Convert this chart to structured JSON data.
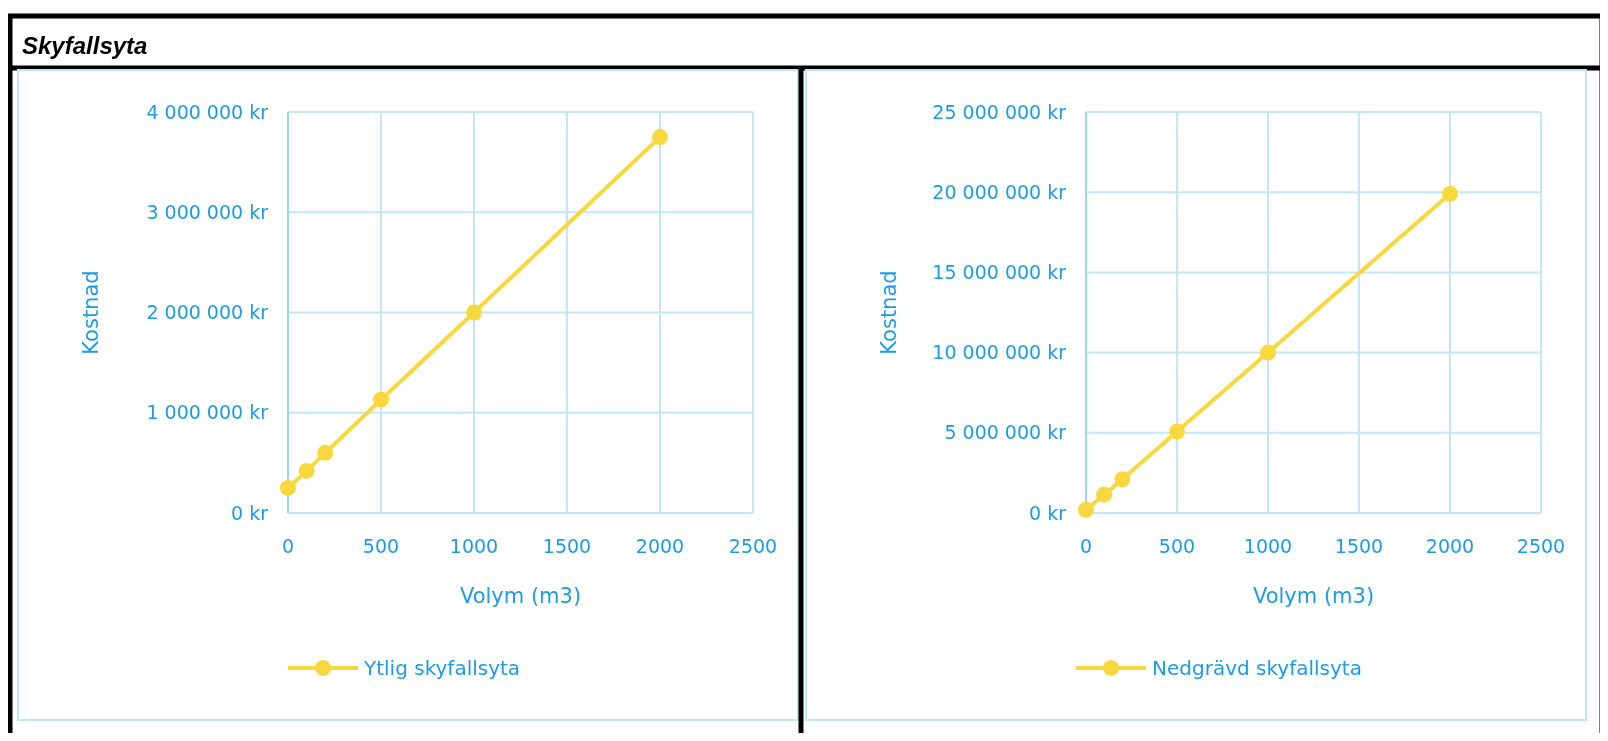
{
  "chart_data": [
    {
      "type": "line",
      "title": "Skyfallsyta",
      "xlabel": "Volym (m3)",
      "ylabel": "Kostnad",
      "x": [
        0,
        100,
        200,
        500,
        1000,
        2000
      ],
      "series": [
        {
          "name": "Ytlig skyfallsyta",
          "color": "#f9d83d",
          "values": [
            250000,
            420000,
            600000,
            1130000,
            2000000,
            3750000
          ]
        }
      ],
      "xlim": [
        0,
        2500
      ],
      "xticks": [
        0,
        500,
        1000,
        1500,
        2000,
        2500
      ],
      "ylim": [
        0,
        4000000
      ],
      "yticks": [
        {
          "value": 0,
          "label": "0 kr"
        },
        {
          "value": 1000000,
          "label": "1 000 000 kr"
        },
        {
          "value": 2000000,
          "label": "2 000 000 kr"
        },
        {
          "value": 3000000,
          "label": "3 000 000 kr"
        },
        {
          "value": 4000000,
          "label": "4 000 000 kr"
        }
      ],
      "grid": true,
      "legend": "bottom",
      "marker": "circle"
    },
    {
      "type": "line",
      "xlabel": "Volym (m3)",
      "ylabel": "Kostnad",
      "x": [
        0,
        100,
        200,
        500,
        1000,
        2000
      ],
      "series": [
        {
          "name": "Nedgrävd skyfallsyta",
          "color": "#f9d83d",
          "values": [
            200000,
            1140000,
            2100000,
            5080000,
            10000000,
            19900000
          ]
        }
      ],
      "xlim": [
        0,
        2500
      ],
      "xticks": [
        0,
        500,
        1000,
        1500,
        2000,
        2500
      ],
      "ylim": [
        0,
        25000000
      ],
      "yticks": [
        {
          "value": 0,
          "label": "0 kr"
        },
        {
          "value": 5000000,
          "label": "5 000 000 kr"
        },
        {
          "value": 10000000,
          "label": "10 000 000 kr"
        },
        {
          "value": 15000000,
          "label": "15 000 000 kr"
        },
        {
          "value": 20000000,
          "label": "20 000 000 kr"
        },
        {
          "value": 25000000,
          "label": "25 000 000 kr"
        }
      ],
      "grid": true,
      "legend": "bottom",
      "marker": "circle"
    }
  ]
}
